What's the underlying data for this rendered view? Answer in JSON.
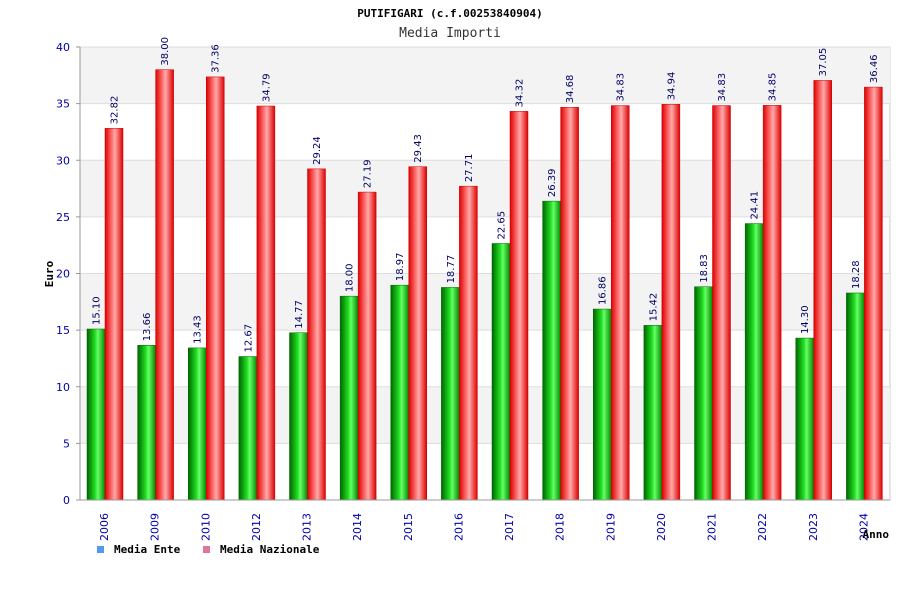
{
  "chart_data": {
    "type": "bar",
    "title": "PUTIFIGARI (c.f.00253840904)",
    "subtitle": "Media Importi",
    "xlabel": "Anno",
    "ylabel": "Euro",
    "ylim": [
      0,
      40
    ],
    "yticks": [
      0,
      5,
      10,
      15,
      20,
      25,
      30,
      35,
      40
    ],
    "grid": true,
    "legend_position": "bottom-left",
    "categories": [
      "2006",
      "2009",
      "2010",
      "2012",
      "2013",
      "2014",
      "2015",
      "2016",
      "2017",
      "2018",
      "2019",
      "2020",
      "2021",
      "2022",
      "2023",
      "2024"
    ],
    "series": [
      {
        "name": "Media Ente",
        "color": "#00bb00",
        "legend_color": "#5599ee",
        "values": [
          15.1,
          13.66,
          13.43,
          12.67,
          14.77,
          18.0,
          18.97,
          18.77,
          22.65,
          26.39,
          16.86,
          15.42,
          18.83,
          24.41,
          14.3,
          18.28
        ],
        "labels": [
          "15.10",
          "13.66",
          "13.43",
          "12.67",
          "14.77",
          "18.00",
          "18.97",
          "18.77",
          "22.65",
          "26.39",
          "16.86",
          "15.42",
          "18.83",
          "24.41",
          "14.30",
          "18.28"
        ]
      },
      {
        "name": "Media Nazionale",
        "color": "#ee1111",
        "legend_color": "#dd7799",
        "values": [
          32.82,
          38.0,
          37.36,
          34.79,
          29.24,
          27.19,
          29.43,
          27.71,
          34.32,
          34.68,
          34.83,
          34.94,
          34.83,
          34.85,
          37.05,
          36.46
        ],
        "labels": [
          "32.82",
          "38.00",
          "37.36",
          "34.79",
          "29.24",
          "27.19",
          "29.43",
          "27.71",
          "34.32",
          "34.68",
          "34.83",
          "34.94",
          "34.83",
          "34.85",
          "37.05",
          "36.46"
        ]
      }
    ]
  }
}
